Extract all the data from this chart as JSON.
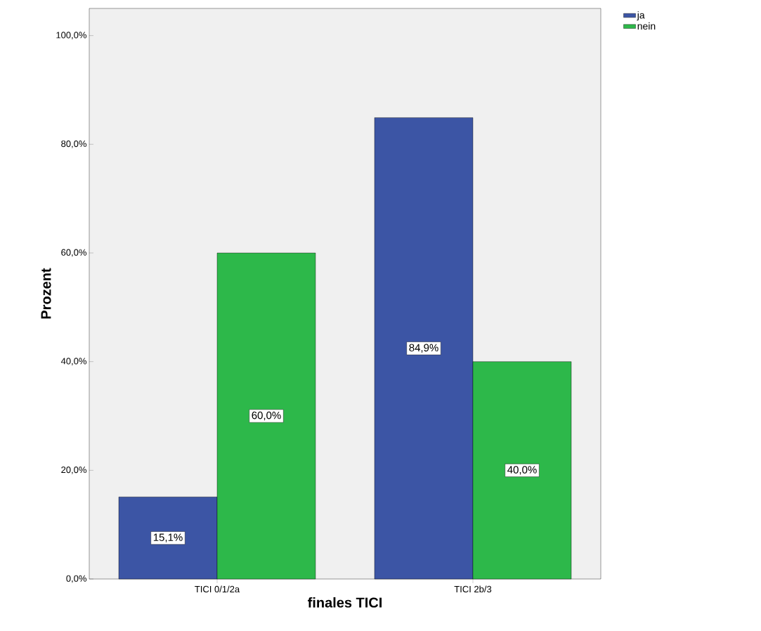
{
  "chart_data": {
    "type": "bar",
    "xlabel": "finales TICI",
    "ylabel": "Prozent",
    "categories": [
      "TICI 0/1/2a",
      "TICI 2b/3"
    ],
    "series": [
      {
        "name": "ja",
        "color": "#3c55a5",
        "values": [
          15.1,
          84.9
        ],
        "value_labels": [
          "15,1%",
          "84,9%"
        ]
      },
      {
        "name": "nein",
        "color": "#2db84a",
        "values": [
          60.0,
          40.0
        ],
        "value_labels": [
          "60,0%",
          "40,0%"
        ]
      }
    ],
    "ylim": [
      0,
      105
    ],
    "yticks": [
      {
        "value": 0,
        "label": "0,0%"
      },
      {
        "value": 20,
        "label": "20,0%"
      },
      {
        "value": 40,
        "label": "40,0%"
      },
      {
        "value": 60,
        "label": "60,0%"
      },
      {
        "value": 80,
        "label": "80,0%"
      },
      {
        "value": 100,
        "label": "100,0%"
      }
    ],
    "legend": "top right"
  }
}
